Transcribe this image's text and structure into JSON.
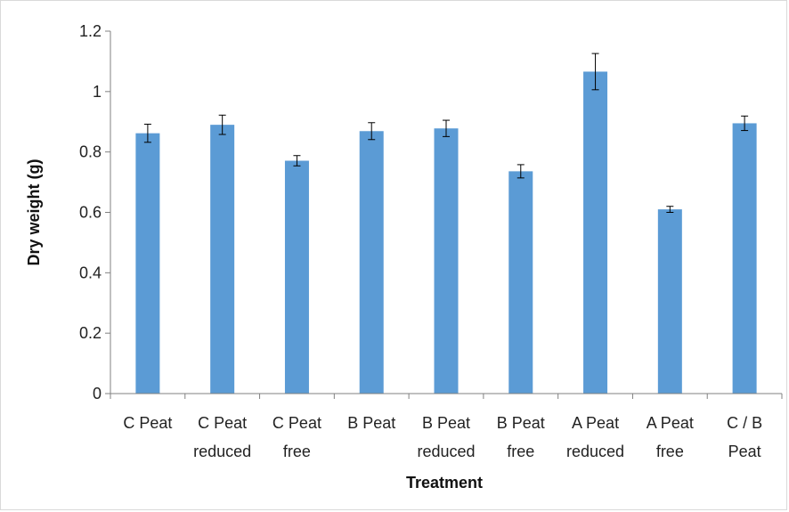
{
  "chart_data": {
    "type": "bar",
    "title": "",
    "xlabel": "Treatment",
    "ylabel": "Dry weight (g)",
    "ylim": [
      0,
      1.2
    ],
    "yticks": [
      "0",
      "0.2",
      "0.4",
      "0.6",
      "0.8",
      "1",
      "1.2"
    ],
    "categories": [
      [
        "C Peat"
      ],
      [
        "C Peat",
        "reduced"
      ],
      [
        "C Peat",
        "free"
      ],
      [
        "B Peat"
      ],
      [
        "B Peat",
        "reduced"
      ],
      [
        "B Peat",
        "free"
      ],
      [
        "A Peat",
        "reduced"
      ],
      [
        "A Peat",
        "free"
      ],
      [
        "C / B",
        "Peat"
      ]
    ],
    "values": [
      0.862,
      0.89,
      0.771,
      0.869,
      0.878,
      0.736,
      1.066,
      0.61,
      0.895
    ],
    "errors": [
      0.03,
      0.032,
      0.017,
      0.028,
      0.027,
      0.022,
      0.06,
      0.01,
      0.024
    ],
    "grid": false,
    "legend": "none",
    "bar_color": "#5b9bd5"
  }
}
